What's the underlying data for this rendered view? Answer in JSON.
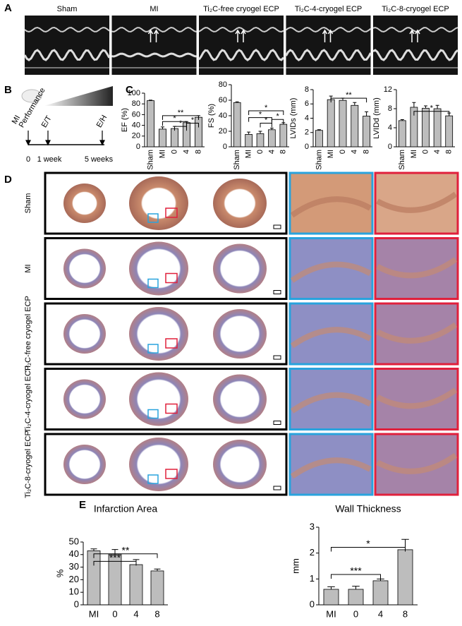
{
  "panel_labels": [
    "A",
    "B",
    "C",
    "D",
    "E"
  ],
  "echo_labels": [
    "Sham",
    "MI",
    "Ti₂C-free cryogel ECP",
    "Ti₂C-4-cryogel ECP",
    "Ti₂C-8-cryogel ECP"
  ],
  "timeline": {
    "events": [
      "MI",
      "Performance",
      "E/T",
      "E/H"
    ],
    "times": [
      "0",
      "1 week",
      "5 weeks"
    ]
  },
  "histology_rows": [
    "Sham",
    "MI",
    "Ti₂C-free cryogel ECP",
    "Ti₂C-4-cryogel ECP",
    "Ti₂C-8-cryogel ECP"
  ],
  "chart_data": [
    {
      "type": "bar",
      "y_label": "EF (%)",
      "categories": [
        "Sham",
        "MI",
        "0",
        "4",
        "8"
      ],
      "values": [
        86,
        33,
        34,
        45,
        55
      ],
      "errors": [
        1,
        4,
        4,
        2,
        3
      ],
      "ylim": [
        0,
        100
      ],
      "yticks": [
        0,
        20,
        40,
        60,
        80,
        100
      ],
      "annotations": [
        "**",
        "*",
        "*",
        "*"
      ]
    },
    {
      "type": "bar",
      "y_label": "FS (%)",
      "categories": [
        "Sham",
        "MI",
        "0",
        "4",
        "8"
      ],
      "values": [
        57,
        16,
        17,
        22,
        29
      ],
      "errors": [
        1,
        3,
        3,
        2,
        2
      ],
      "ylim": [
        0,
        80
      ],
      "yticks": [
        0,
        20,
        40,
        60,
        80
      ],
      "annotations": [
        "*",
        "*",
        "*",
        "*"
      ]
    },
    {
      "type": "bar",
      "y_label": "LVIDs (mm)",
      "categories": [
        "Sham",
        "MI",
        "0",
        "4",
        "8"
      ],
      "values": [
        2.3,
        6.6,
        6.5,
        5.8,
        4.3
      ],
      "errors": [
        0.1,
        0.5,
        0.3,
        0.4,
        0.6
      ],
      "ylim": [
        0,
        8
      ],
      "yticks": [
        0,
        2,
        4,
        6,
        8
      ],
      "annotations": [
        "**"
      ]
    },
    {
      "type": "bar",
      "y_label": "LVIDd (mm)",
      "categories": [
        "Sham",
        "MI",
        "0",
        "4",
        "8"
      ],
      "values": [
        5.5,
        8.3,
        8.1,
        8.0,
        6.5
      ],
      "errors": [
        0.2,
        1.0,
        0.5,
        0.7,
        0.6
      ],
      "ylim": [
        0,
        12
      ],
      "yticks": [
        0,
        4,
        8,
        12
      ],
      "annotations": [
        "*"
      ]
    },
    {
      "type": "bar",
      "title": "Infarction Area",
      "y_label": "%",
      "categories": [
        "MI",
        "0",
        "4",
        "8"
      ],
      "values": [
        43,
        40,
        32,
        27
      ],
      "errors": [
        1.5,
        4,
        4,
        1.5
      ],
      "ylim": [
        0,
        50
      ],
      "yticks": [
        0,
        10,
        20,
        30,
        40,
        50
      ],
      "annotations": [
        "**",
        "***"
      ]
    },
    {
      "type": "bar",
      "title": "Wall Thickness",
      "y_label": "mm",
      "categories": [
        "MI",
        "0",
        "4",
        "8"
      ],
      "values": [
        0.6,
        0.6,
        0.93,
        2.13
      ],
      "errors": [
        0.1,
        0.12,
        0.07,
        0.4
      ],
      "ylim": [
        0,
        3
      ],
      "yticks": [
        0,
        1,
        2,
        3
      ],
      "annotations": [
        "*",
        "***"
      ]
    }
  ]
}
